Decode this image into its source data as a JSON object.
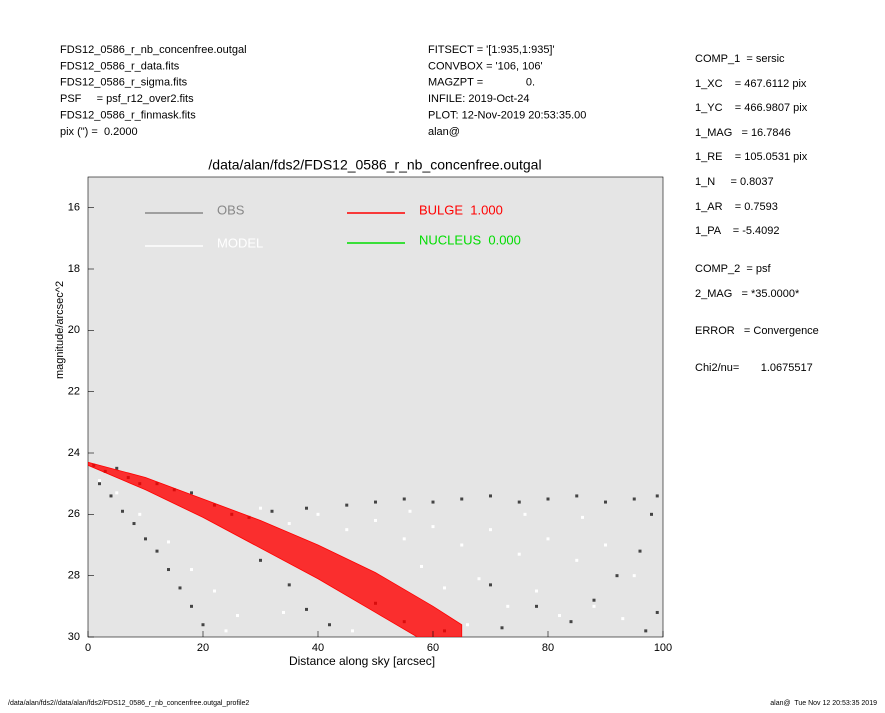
{
  "header": {
    "left": [
      "FDS12_0586_r_nb_concenfree.outgal",
      "FDS12_0586_r_data.fits",
      "FDS12_0586_r_sigma.fits",
      "PSF     = psf_r12_over2.fits",
      "FDS12_0586_r_finmask.fits",
      "pix (\") =  0.2000"
    ],
    "middle": [
      "FITSECT = '[1:935,1:935]'",
      "CONVBOX = '106, 106'",
      "MAGZPT =              0.",
      "INFILE: 2019-Oct-24",
      "PLOT: 12-Nov-2019 20:53:35.00",
      "alan@"
    ]
  },
  "components": [
    "COMP_1  = sersic",
    "1_XC    = 467.6112 pix",
    "1_YC    = 466.9807 pix",
    "1_MAG   = 16.7846",
    "1_RE    = 105.0531 pix",
    "1_N     = 0.8037",
    "1_AR    = 0.7593",
    "1_PA    = -5.4092",
    "COMP_2  = psf",
    "2_MAG   = *35.0000*",
    "ERROR   = Convergence",
    "Chi2/nu=       1.0675517"
  ],
  "footer": {
    "left": "/data/alan/fds2//data/alan/fds2/FDS12_0586_r_nb_concenfree.outgal_profile2",
    "right": "alan@  Tue Nov 12 20:53:35 2019"
  },
  "chart_data": {
    "type": "scatter",
    "title": "/data/alan/fds2/FDS12_0586_r_nb_concenfree.outgal",
    "x_label": "Distance along sky [arcsec]",
    "y_label": "magnitude/arcsec^2",
    "xlim": [
      0,
      100
    ],
    "xticks": [
      0,
      20,
      40,
      60,
      80,
      100
    ],
    "ylim": [
      30,
      15
    ],
    "yticks": [
      16,
      18,
      20,
      22,
      24,
      26,
      28,
      30
    ],
    "legend": "upper left",
    "series": [
      {
        "name": "OBS",
        "color": "#444444",
        "legend_color": "#888888",
        "x": [
          1,
          3,
          5,
          7,
          9,
          2,
          4,
          6,
          8,
          10,
          12,
          14,
          16,
          18,
          20,
          12,
          15,
          18,
          22,
          25,
          28,
          30,
          35,
          38,
          42,
          32,
          38,
          45,
          50,
          55,
          60,
          65,
          70,
          75,
          80,
          85,
          90,
          95,
          99,
          98,
          96,
          92,
          88,
          84,
          78,
          72,
          70,
          99,
          97,
          62,
          55,
          50
        ],
        "values": [
          24.4,
          24.6,
          24.5,
          24.8,
          25.0,
          25.0,
          25.4,
          25.9,
          26.3,
          26.8,
          27.2,
          27.8,
          28.4,
          29.0,
          29.6,
          25.0,
          25.2,
          25.3,
          25.7,
          26.0,
          26.1,
          27.5,
          28.3,
          29.1,
          29.6,
          25.9,
          25.8,
          25.7,
          25.6,
          25.5,
          25.6,
          25.5,
          25.4,
          25.6,
          25.5,
          25.4,
          25.6,
          25.5,
          25.4,
          26.0,
          27.2,
          28.0,
          28.8,
          29.5,
          29.0,
          29.7,
          28.3,
          29.2,
          29.8,
          29.8,
          29.5,
          28.9
        ]
      },
      {
        "name": "MODEL",
        "color": "#ffffff",
        "legend_color": "#ffffff",
        "x": [
          2,
          5,
          9,
          14,
          18,
          22,
          26,
          24,
          30,
          35,
          40,
          45,
          50,
          55,
          60,
          65,
          70,
          75,
          80,
          85,
          90,
          95,
          58,
          62,
          68,
          73,
          78,
          82,
          88,
          93,
          66,
          86,
          76,
          56,
          46,
          34
        ],
        "values": [
          24.9,
          25.3,
          26.0,
          26.9,
          27.8,
          28.5,
          29.3,
          29.8,
          25.8,
          26.3,
          26.0,
          26.5,
          26.2,
          26.8,
          26.4,
          27.0,
          26.5,
          27.3,
          26.8,
          27.5,
          27.0,
          28.0,
          27.7,
          28.4,
          28.1,
          29.0,
          28.5,
          29.3,
          29.0,
          29.4,
          29.6,
          26.1,
          26.0,
          25.9,
          29.8,
          29.2
        ]
      },
      {
        "name": "BULGE  1.000",
        "color": "#ff0000",
        "legend_color": "#ff0000",
        "band": true,
        "x": [
          0,
          10,
          20,
          30,
          40,
          50,
          60,
          65
        ],
        "values": [
          24.3,
          24.8,
          25.5,
          26.2,
          27.0,
          27.9,
          29.0,
          29.6
        ],
        "values_low": [
          24.4,
          25.2,
          26.1,
          27.1,
          28.1,
          29.2,
          30.3,
          30.8
        ]
      },
      {
        "name": "NUCLEUS  0.000",
        "color": "#00dd00",
        "legend_color": "#00dd00",
        "x": [],
        "values": []
      }
    ]
  }
}
